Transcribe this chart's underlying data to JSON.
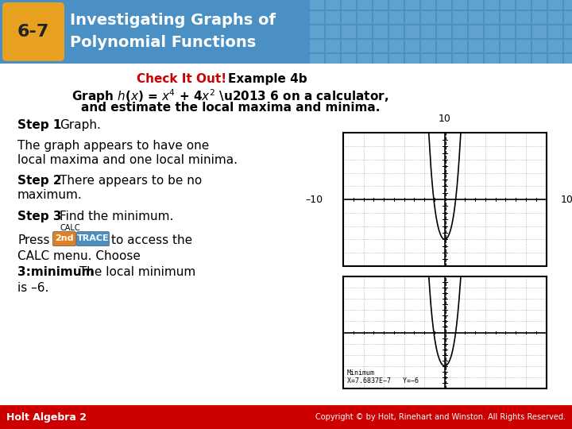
{
  "title_number": "6-7",
  "title_line1": "Investigating Graphs of",
  "title_line2": "Polynomial Functions",
  "header_bg": "#4a90c4",
  "header_text_color": "#ffffff",
  "badge_bg": "#e8a020",
  "badge_text_color": "#222222",
  "body_bg": "#ffffff",
  "check_color": "#cc0000",
  "footer_left": "Holt Algebra 2",
  "footer_right": "Copyright © by Holt, Rinehart and Winston. All Rights Reserved.",
  "footer_bg": "#cc0000",
  "footer_text_color": "#ffffff",
  "tiled_bg": "#6aaad4",
  "btn2nd_bg": "#e08020",
  "btntrace_bg": "#4a90c4"
}
